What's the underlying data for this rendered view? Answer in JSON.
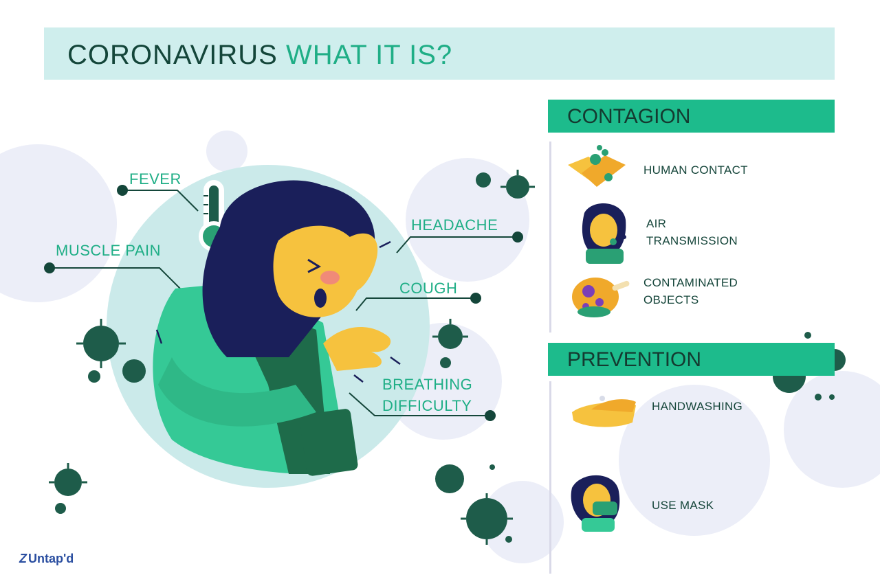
{
  "title": {
    "part1": "CORONAVIRUS",
    "part2": "WHAT IT IS?"
  },
  "symptoms": {
    "fever": "FEVER",
    "headache": "HEADACHE",
    "muscle_pain": "MUSCLE PAIN",
    "cough": "COUGH",
    "breathing_line1": "BREATHING",
    "breathing_line2": "DIFFICULTY"
  },
  "contagion": {
    "heading": "CONTAGION",
    "items": [
      {
        "icon": "handshake-icon",
        "lines": [
          "HUMAN CONTACT"
        ]
      },
      {
        "icon": "sneezing-woman-icon",
        "lines": [
          "AIR",
          "TRANSMISSION"
        ]
      },
      {
        "icon": "contaminated-food-icon",
        "lines": [
          "CONTAMINATED",
          "OBJECTS"
        ]
      }
    ]
  },
  "prevention": {
    "heading": "PREVENTION",
    "items": [
      {
        "icon": "handwashing-icon",
        "lines": [
          "HANDWASHING"
        ]
      },
      {
        "icon": "masked-woman-icon",
        "lines": [
          "USE MASK"
        ]
      }
    ]
  },
  "brand": {
    "name": "Untap'd",
    "logo_icon": "untapd-logo-icon"
  },
  "colors": {
    "dark_green": "#14463a",
    "accent_green": "#1fae86",
    "bar_green": "#1dbb8c",
    "title_bg": "#cfeeed",
    "circle_bg": "#cbeaea",
    "virus": "#1e5c4a",
    "skin": "#f6c23e",
    "hair": "#1a1f5a"
  }
}
